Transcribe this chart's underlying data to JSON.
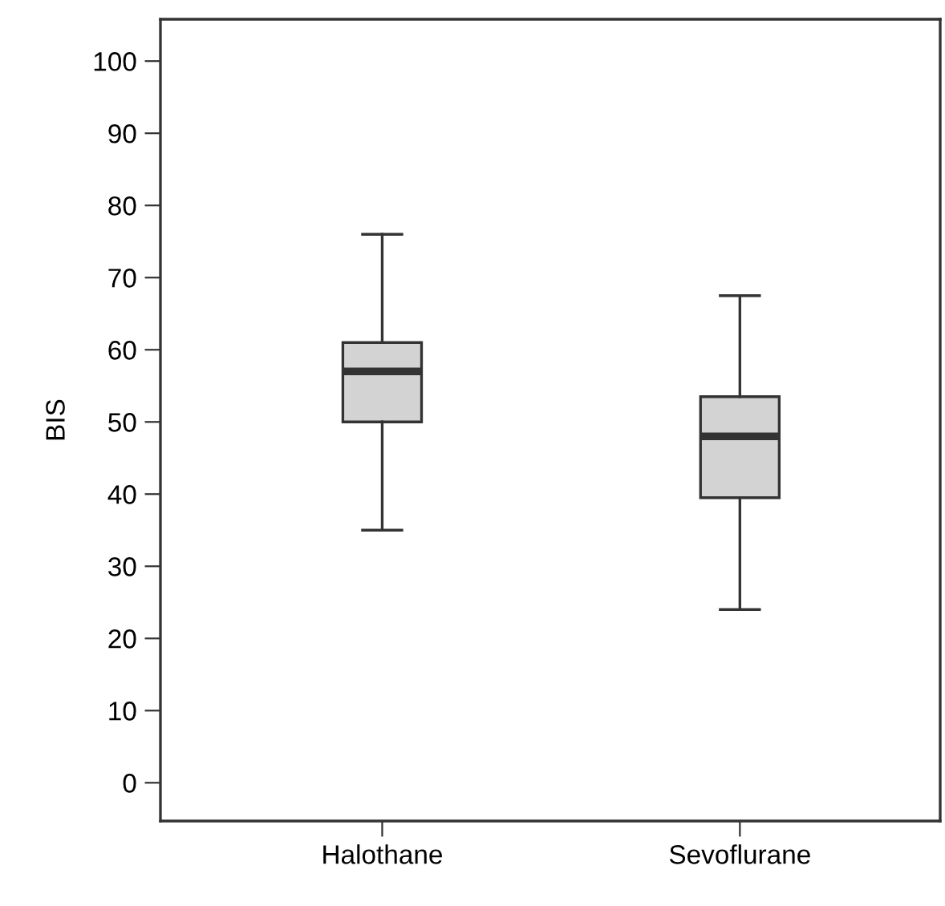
{
  "chart_data": {
    "type": "box",
    "ylabel": "BIS",
    "categories": [
      "Halothane",
      "Sevoflurane"
    ],
    "boxes": [
      {
        "low": 35,
        "q1": 50,
        "median": 57,
        "q3": 61,
        "high": 76
      },
      {
        "low": 24,
        "q1": 39.5,
        "median": 48,
        "q3": 53.5,
        "high": 67.5
      }
    ],
    "color": "#d3d3d3",
    "ylim": [
      -5.3,
      105.8
    ],
    "yticks": [
      0,
      10,
      20,
      30,
      40,
      50,
      60,
      70,
      80,
      90,
      100
    ],
    "grid": false,
    "legend": false
  }
}
